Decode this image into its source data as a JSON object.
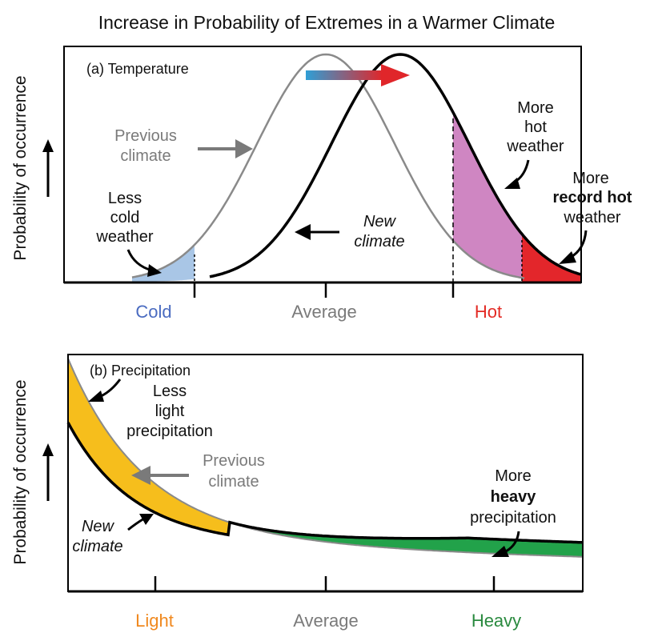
{
  "figure_title": "Increase in Probability of Extremes in a Warmer Climate",
  "colors": {
    "cold": "#4a6bc0",
    "cold_fill": "#a9c6e6",
    "hot": "#e32b25",
    "hot_fill": "#cf86c2",
    "record_hot_fill": "#e3262b",
    "light": "#f0891f",
    "light_fill": "#f6be1c",
    "heavy": "#2a8a3f",
    "heavy_fill": "#22a24a",
    "previous_curve": "#8a8a8a",
    "new_curve": "#000000",
    "neutral_tick": "#7a7a7a",
    "shift_arrow_start": "#2f9fd6",
    "shift_arrow_end": "#e0262a"
  },
  "panel_a": {
    "label": "(a) Temperature",
    "ylabel": "Probability of occurrence",
    "ticks": [
      "Cold",
      "Average",
      "Hot"
    ],
    "annotations": {
      "previous_climate": [
        "Previous",
        "climate"
      ],
      "new_climate": [
        "New",
        "climate"
      ],
      "less_cold": {
        "line1": "Less",
        "colored": "cold",
        "line3": "weather"
      },
      "more_hot": {
        "line1": "More",
        "colored": "hot",
        "line3": "weather"
      },
      "more_record_hot": {
        "line1": "More",
        "colored": "record hot",
        "line3": "weather"
      }
    }
  },
  "panel_b": {
    "label": "(b) Precipitation",
    "ylabel": "Probability of occurrence",
    "ticks": [
      "Light",
      "Average",
      "Heavy"
    ],
    "annotations": {
      "less_light": {
        "line1": "Less",
        "colored": "light",
        "line3": "precipitation"
      },
      "previous_climate": [
        "Previous",
        "climate"
      ],
      "new_climate": [
        "New",
        "climate"
      ],
      "more_heavy": {
        "line1": "More",
        "colored": "heavy",
        "line3": "precipitation"
      }
    }
  }
}
